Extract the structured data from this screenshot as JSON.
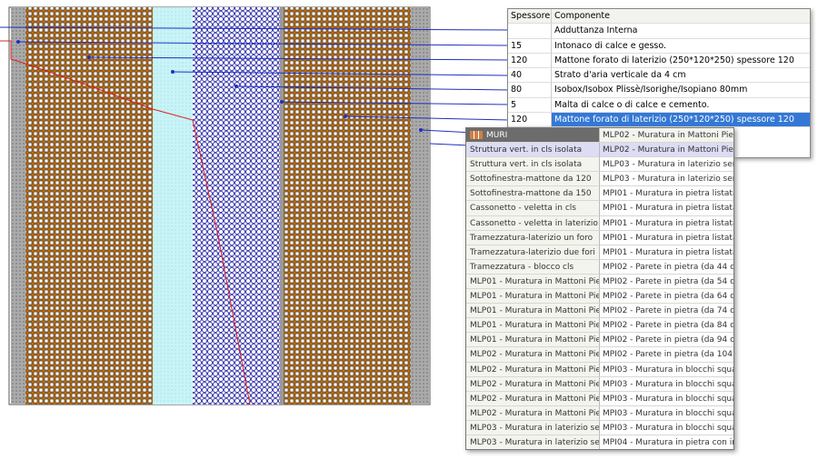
{
  "table": {
    "header": [
      "Spessore",
      "Componente"
    ],
    "rows": [
      [
        "",
        "Adduttanza Interna"
      ],
      [
        "15",
        "Intonaco di calce e gesso."
      ],
      [
        "120",
        "Mattone forato di laterizio (250*120*250) spessore 120"
      ],
      [
        "40",
        "Strato d'aria verticale da 4 cm"
      ],
      [
        "80",
        "Isobox/Isobox Plissè/Isorighe/Isopiano 80mm"
      ],
      [
        "5",
        "Malta di calce o di calce e cemento."
      ],
      [
        "120",
        "Mattone forato di laterizio (250*120*250) spessore 120"
      ]
    ]
  },
  "dropdown": {
    "header": [
      "MURI",
      "MLP02 - Muratura in Mattoni Pien"
    ],
    "rows": [
      [
        "Struttura vert. in cls  isolata",
        "MLP02 - Muratura in Mattoni Pien"
      ],
      [
        "Struttura vert. in cls  isolata",
        "MLP03 - Muratura in laterizio sem"
      ],
      [
        "Sottofinestra-mattone da 120",
        "MLP03 - Muratura in laterizio sem"
      ],
      [
        "Sottofinestra-mattone da 150",
        "MPI01 - Muratura in pietra listata"
      ],
      [
        "Cassonetto - veletta in cls",
        "MPI01 - Muratura in pietra listata"
      ],
      [
        "Cassonetto - veletta in laterizio",
        "MPI01 - Muratura in pietra listata"
      ],
      [
        "Tramezzatura-laterizio un foro",
        "MPI01 - Muratura in pietra listata"
      ],
      [
        "Tramezzatura-laterizio due fori",
        "MPI01 - Muratura in pietra listata"
      ],
      [
        "Tramezzatura - blocco cls",
        "MPI02 - Parete in pietra (da 44 c"
      ],
      [
        "MLP01 - Muratura in Mattoni Pien",
        "MPI02 - Parete in pietra (da 54 c"
      ],
      [
        "MLP01 - Muratura in Mattoni Pien",
        "MPI02 - Parete in pietra (da 64 c"
      ],
      [
        "MLP01 - Muratura in Mattoni Pien",
        "MPI02 - Parete in pietra (da 74 c"
      ],
      [
        "MLP01 - Muratura in Mattoni Pien",
        "MPI02 - Parete in pietra (da 84 c"
      ],
      [
        "MLP01 - Muratura in Mattoni Pien",
        "MPI02 - Parete in pietra (da 94 c"
      ],
      [
        "MLP02 - Muratura in Mattoni Pien",
        "MPI02 - Parete in pietra (da 104"
      ],
      [
        "MLP02 - Muratura in Mattoni Pien",
        "MPI03 - Muratura in blocchi squa"
      ],
      [
        "MLP02 - Muratura in Mattoni Pien",
        "MPI03 - Muratura in blocchi squa"
      ],
      [
        "MLP02 - Muratura in Mattoni Pien",
        "MPI03 - Muratura in blocchi squa"
      ],
      [
        "MLP02 - Muratura in Mattoni Pien",
        "MPI03 - Muratura in blocchi squa"
      ],
      [
        "MLP03 - Muratura in laterizio sem",
        "MPI03 - Muratura in blocchi squa"
      ],
      [
        "MLP03 - Muratura in laterizio sem",
        "MPI04 - Muratura in pietra con in"
      ]
    ]
  }
}
